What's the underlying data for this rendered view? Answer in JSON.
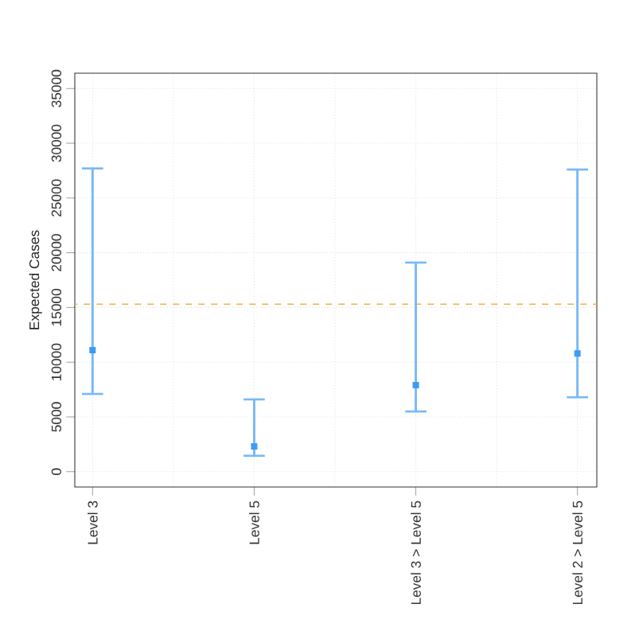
{
  "chart_data": {
    "type": "scatter",
    "ylabel": "Expected Cases",
    "categories": [
      "Level 3",
      "Level 5",
      "Level 3 > Level 5",
      "Level 2 > Level 5"
    ],
    "series": [
      {
        "color": "#3d9bf5",
        "values": [
          11100,
          2300,
          7900,
          10800
        ],
        "errors": [
          [
            7100,
            27700
          ],
          [
            1450,
            6600
          ],
          [
            5500,
            19100
          ],
          [
            6800,
            27600
          ]
        ]
      }
    ],
    "marker": "square",
    "ylim": [
      -1400,
      36400
    ],
    "yticks": [
      0,
      5000,
      10000,
      15000,
      20000,
      25000,
      30000,
      35000
    ],
    "grid": true,
    "ref_lines": [
      {
        "axis": "y",
        "value": 15300,
        "color": "#f5b041",
        "line_style": "dashed"
      }
    ]
  }
}
